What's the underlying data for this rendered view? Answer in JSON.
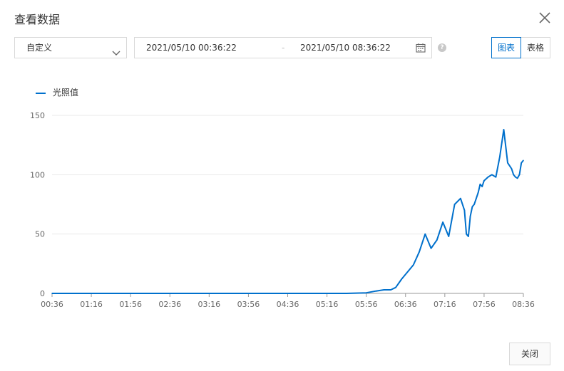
{
  "dialog": {
    "title": "查看数据",
    "close_icon": "close-icon"
  },
  "toolbar": {
    "range_select": "自定义",
    "date_start": "2021/05/10 00:36:22",
    "date_sep": "-",
    "date_end": "2021/05/10 08:36:22",
    "help_glyph": "?",
    "tab_chart": "图表",
    "tab_table": "表格",
    "active_tab": "图表"
  },
  "footer": {
    "close_label": "关闭"
  },
  "colors": {
    "accent": "#0070cc",
    "grid": "#e8e8e8"
  },
  "chart_data": {
    "type": "line",
    "legend": "光照值",
    "legend_position": "top-left",
    "ylim": [
      0,
      150
    ],
    "y_ticks": [
      0,
      50,
      100,
      150
    ],
    "x_ticks": [
      "00:36",
      "01:16",
      "01:56",
      "02:36",
      "03:16",
      "03:56",
      "04:36",
      "05:16",
      "05:56",
      "06:36",
      "07:16",
      "07:56",
      "08:36"
    ],
    "grid": true,
    "series": [
      {
        "name": "光照值",
        "x_minutes": [
          0,
          300,
          320,
          330,
          338,
          345,
          350,
          356,
          362,
          368,
          374,
          380,
          386,
          392,
          398,
          404,
          410,
          416,
          420,
          422,
          424,
          426,
          428,
          430,
          432,
          434,
          436,
          438,
          440,
          444,
          448,
          452,
          456,
          460,
          464,
          468,
          470,
          472,
          474,
          476,
          478,
          480
        ],
        "values": [
          0,
          0,
          0.5,
          2,
          3,
          3,
          5,
          12,
          18,
          24,
          35,
          50,
          38,
          45,
          60,
          48,
          75,
          80,
          70,
          50,
          48,
          65,
          73,
          75,
          80,
          85,
          92,
          90,
          95,
          98,
          100,
          98,
          115,
          138,
          110,
          105,
          100,
          98,
          97,
          100,
          110,
          112
        ]
      }
    ]
  }
}
